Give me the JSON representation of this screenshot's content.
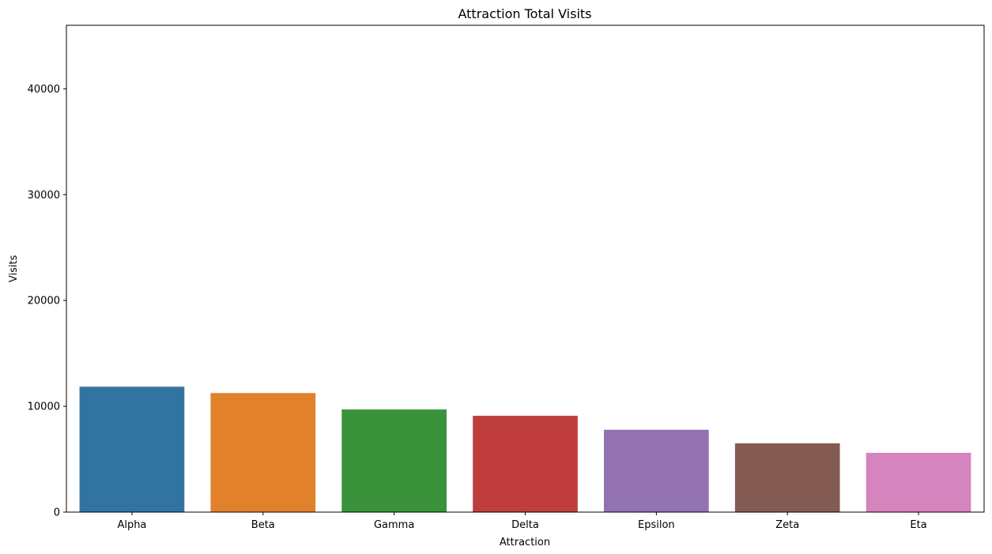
{
  "chart_data": {
    "type": "bar",
    "title": "Attraction Total Visits",
    "xlabel": "Attraction",
    "ylabel": "Visits",
    "categories": [
      "Alpha",
      "Beta",
      "Gamma",
      "Delta",
      "Epsilon",
      "Zeta",
      "Eta"
    ],
    "values": [
      11850,
      11250,
      9700,
      9100,
      7780,
      6500,
      5600
    ],
    "colors": [
      "#3274a1",
      "#e1812c",
      "#3a923a",
      "#c03d3e",
      "#9372b2",
      "#845b53",
      "#d684bd"
    ],
    "ylim": [
      0,
      46000
    ],
    "yticks": [
      0,
      10000,
      20000,
      30000,
      40000
    ],
    "ytick_labels": [
      "0",
      "10000",
      "20000",
      "30000",
      "40000"
    ],
    "grid": false,
    "legend": "none"
  }
}
